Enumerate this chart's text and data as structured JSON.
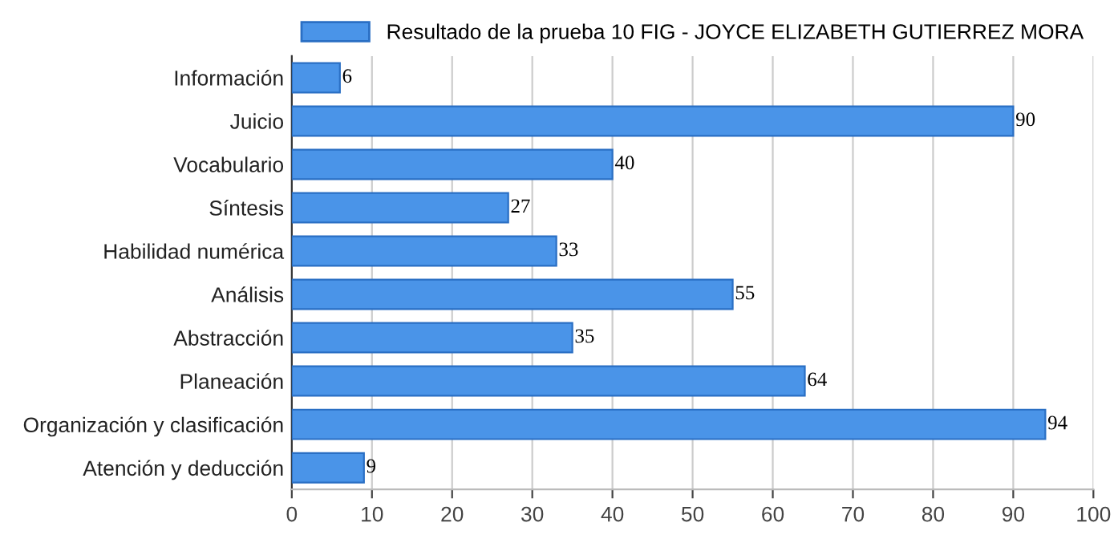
{
  "chart_data": {
    "type": "bar",
    "orientation": "horizontal",
    "categories": [
      "Información",
      "Juicio",
      "Vocabulario",
      "Síntesis",
      "Habilidad numérica",
      "Análisis",
      "Abstracción",
      "Planeación",
      "Organización y clasificación",
      "Atención y deducción"
    ],
    "series": [
      {
        "name": "Resultado de la prueba 10 FIG - JOYCE ELIZABETH GUTIERREZ MORA",
        "color": "#4a94e8",
        "values": [
          6,
          90,
          40,
          27,
          33,
          55,
          35,
          64,
          94,
          9
        ]
      }
    ],
    "xlim": [
      0,
      100
    ],
    "xticks": [
      0,
      10,
      20,
      30,
      40,
      50,
      60,
      70,
      80,
      90,
      100
    ],
    "grid": "x",
    "legend": "top",
    "data_labels": true
  }
}
